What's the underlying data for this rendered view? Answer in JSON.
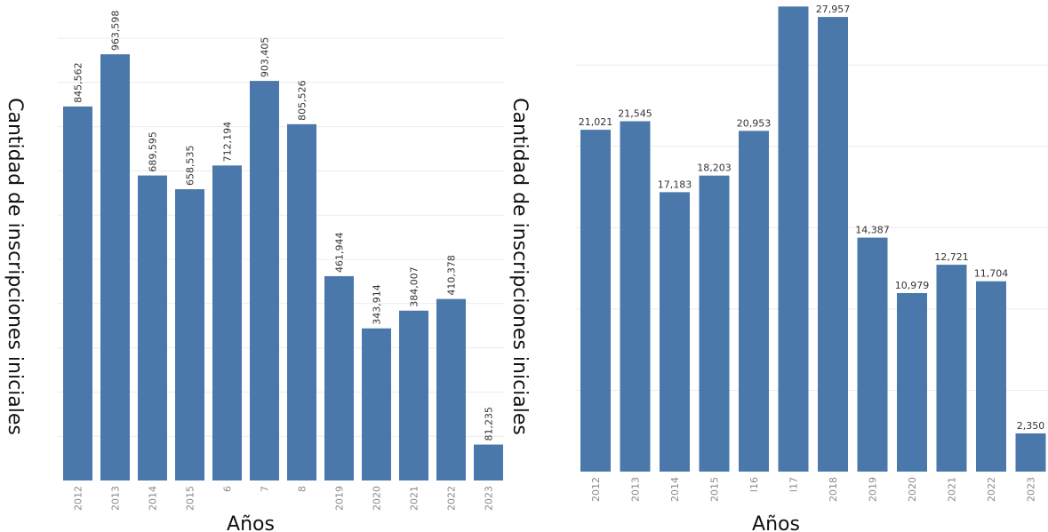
{
  "colors": {
    "bar": "#4a78aa",
    "grid": "#ececec"
  },
  "chart_data": [
    {
      "type": "bar",
      "title": "",
      "xlabel": "Años",
      "ylabel": "Cantidad de inscripciones iniciales",
      "categories": [
        "2012",
        "2013",
        "2014",
        "2015",
        "6",
        "7",
        "8",
        "2019",
        "2020",
        "2021",
        "2022",
        "2023"
      ],
      "value_labels": [
        "845,562",
        "963,598",
        "689,595",
        "658,535",
        "712,194",
        "903,405",
        "805,526",
        "461,944",
        "343,914",
        "384,007",
        "410,378",
        "81,235"
      ],
      "values": [
        845562,
        963598,
        689595,
        658535,
        712194,
        903405,
        805526,
        461944,
        343914,
        384007,
        410378,
        81235
      ],
      "ylim": [
        0,
        1000000
      ],
      "grid": true,
      "legend": "none"
    },
    {
      "type": "bar",
      "title": "",
      "xlabel": "Años",
      "ylabel": "Cantidad de inscripciones iniciales",
      "categories": [
        "2012",
        "2013",
        "2014",
        "2015",
        "l16",
        "l17",
        "2018",
        "2019",
        "2020",
        "2021",
        "2022",
        "2023"
      ],
      "value_labels": [
        "21,021",
        "21,545",
        "17,183",
        "18,203",
        "20,953",
        "",
        "27,957",
        "14,387",
        "10,979",
        "12,721",
        "11,704",
        "2,350"
      ],
      "values": [
        21021,
        21545,
        17183,
        18203,
        20953,
        28600,
        27957,
        14387,
        10979,
        12721,
        11704,
        2350
      ],
      "ylim": [
        0,
        29000
      ],
      "grid": true,
      "legend": "none"
    }
  ]
}
